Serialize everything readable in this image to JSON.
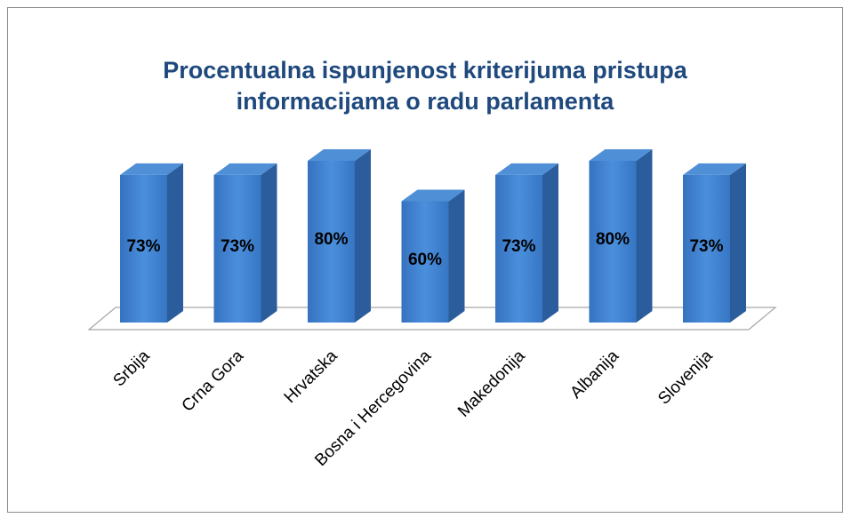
{
  "chart_data": {
    "type": "bar3d",
    "title": [
      "Procentualna ispunjenost kriterijuma pristupa",
      "informacijama o radu parlamenta"
    ],
    "categories": [
      "Srbija",
      "Crna Gora",
      "Hrvatska",
      "Bosna i Hercegovina",
      "Makedonija",
      "Albanija",
      "Slovenija"
    ],
    "values": [
      73,
      73,
      80,
      60,
      73,
      80,
      73
    ],
    "value_labels": [
      "73%",
      "73%",
      "80%",
      "60%",
      "73%",
      "80%",
      "73%"
    ],
    "color": "#3b7fd1"
  }
}
